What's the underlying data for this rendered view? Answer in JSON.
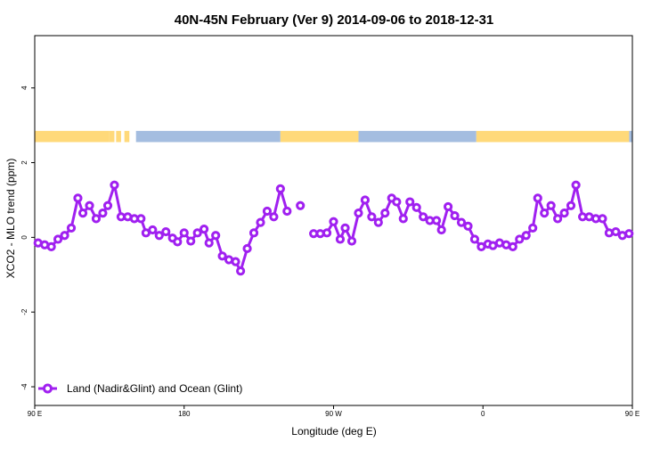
{
  "chart_data": {
    "type": "line",
    "title": "40N-45N February (Ver 9)   2014-09-06 to 2018-12-31",
    "xlabel": "Longitude (deg E)",
    "ylabel": "XCO2 - MLO trend (ppm)",
    "xlim": [
      90,
      450
    ],
    "ylim": [
      -4.5,
      5.4
    ],
    "x_ticks": [
      {
        "value": 90,
        "label": "90 E"
      },
      {
        "value": 180,
        "label": "180"
      },
      {
        "value": 270,
        "label": "90 W"
      },
      {
        "value": 360,
        "label": "0"
      },
      {
        "value": 450,
        "label": "90 E"
      },
      {
        "value": 540,
        "label": "180"
      }
    ],
    "y_ticks": [
      {
        "value": -4,
        "label": "-4"
      },
      {
        "value": -2,
        "label": "-2"
      },
      {
        "value": 0,
        "label": "0"
      },
      {
        "value": 2,
        "label": "2"
      },
      {
        "value": 4,
        "label": "4"
      }
    ],
    "grid": false,
    "legend_position": "bottom-left",
    "surface_strip": {
      "y_range": [
        2.55,
        2.85
      ],
      "land_color": "#FFD97A",
      "ocean_color": "#A4BDE0",
      "land_intervals": [
        [
          90,
          135
        ],
        [
          135,
          138
        ],
        [
          139,
          142
        ],
        [
          144,
          147
        ],
        [
          238,
          285
        ],
        [
          356,
          448
        ]
      ],
      "ocean_intervals": [
        [
          151,
          238
        ],
        [
          285,
          356
        ],
        [
          448,
          540
        ]
      ]
    },
    "series": [
      {
        "name": "Land (Nadir&Glint) and Ocean (Glint)",
        "color": "#A020F0",
        "segments": [
          [
            [
              92,
              -0.15
            ],
            [
              96,
              -0.2
            ],
            [
              100,
              -0.25
            ],
            [
              104,
              -0.05
            ],
            [
              108,
              0.05
            ],
            [
              112,
              0.25
            ],
            [
              116,
              1.05
            ],
            [
              119,
              0.65
            ],
            [
              123,
              0.85
            ],
            [
              127,
              0.5
            ],
            [
              131,
              0.65
            ],
            [
              134,
              0.85
            ],
            [
              138,
              1.4
            ],
            [
              142,
              0.55
            ],
            [
              146,
              0.55
            ],
            [
              150,
              0.5
            ],
            [
              154,
              0.5
            ],
            [
              157,
              0.12
            ],
            [
              161,
              0.2
            ],
            [
              165,
              0.05
            ],
            [
              169,
              0.15
            ],
            [
              173,
              -0.02
            ],
            [
              176,
              -0.12
            ],
            [
              180,
              0.12
            ],
            [
              184,
              -0.1
            ],
            [
              188,
              0.12
            ],
            [
              192,
              0.22
            ],
            [
              195,
              -0.15
            ],
            [
              199,
              0.05
            ],
            [
              203,
              -0.5
            ],
            [
              207,
              -0.6
            ],
            [
              211,
              -0.65
            ],
            [
              214,
              -0.9
            ],
            [
              218,
              -0.3
            ],
            [
              222,
              0.12
            ],
            [
              226,
              0.4
            ],
            [
              230,
              0.7
            ],
            [
              234,
              0.55
            ],
            [
              238,
              1.3
            ],
            [
              242,
              0.7
            ]
          ],
          [
            [
              250,
              0.85
            ]
          ],
          [
            [
              258,
              0.1
            ],
            [
              262,
              0.1
            ],
            [
              266,
              0.12
            ],
            [
              270,
              0.42
            ],
            [
              274,
              -0.05
            ],
            [
              277,
              0.25
            ],
            [
              281,
              -0.1
            ],
            [
              285,
              0.65
            ],
            [
              289,
              1.0
            ],
            [
              293,
              0.55
            ],
            [
              297,
              0.4
            ],
            [
              301,
              0.65
            ],
            [
              305,
              1.05
            ],
            [
              308,
              0.95
            ],
            [
              312,
              0.5
            ],
            [
              316,
              0.95
            ],
            [
              320,
              0.8
            ],
            [
              324,
              0.55
            ],
            [
              328,
              0.45
            ],
            [
              332,
              0.45
            ],
            [
              335,
              0.2
            ],
            [
              339,
              0.82
            ],
            [
              343,
              0.58
            ],
            [
              347,
              0.4
            ],
            [
              351,
              0.3
            ],
            [
              355,
              -0.05
            ],
            [
              359,
              -0.25
            ],
            [
              363,
              -0.18
            ],
            [
              366,
              -0.22
            ],
            [
              370,
              -0.15
            ],
            [
              374,
              -0.2
            ],
            [
              378,
              -0.25
            ],
            [
              382,
              -0.05
            ],
            [
              386,
              0.05
            ],
            [
              390,
              0.25
            ],
            [
              393,
              1.05
            ],
            [
              397,
              0.65
            ],
            [
              401,
              0.85
            ],
            [
              405,
              0.5
            ],
            [
              409,
              0.65
            ],
            [
              413,
              0.85
            ],
            [
              416,
              1.4
            ],
            [
              420,
              0.55
            ],
            [
              424,
              0.55
            ],
            [
              428,
              0.5
            ],
            [
              432,
              0.5
            ],
            [
              436,
              0.12
            ],
            [
              440,
              0.15
            ],
            [
              444,
              0.05
            ],
            [
              448,
              0.1
            ]
          ]
        ]
      }
    ]
  }
}
